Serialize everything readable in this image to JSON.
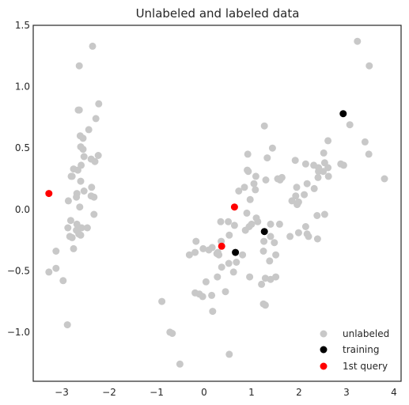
{
  "chart_data": {
    "type": "scatter",
    "title": "Unlabeled and labeled data",
    "xlabel": "",
    "ylabel": "",
    "xlim": [
      -3.6,
      4.15
    ],
    "ylim": [
      -1.4,
      1.5
    ],
    "xticks": [
      -3,
      -2,
      -1,
      0,
      1,
      2,
      3,
      4
    ],
    "yticks": [
      -1.0,
      -0.5,
      0.0,
      0.5,
      1.0,
      1.5
    ],
    "xtick_labels": [
      "−3",
      "−2",
      "−1",
      "0",
      "1",
      "2",
      "3",
      "4"
    ],
    "ytick_labels": [
      "−1.0",
      "−0.5",
      "0.0",
      "0.5",
      "1.0",
      "1.5"
    ],
    "grid": false,
    "legend_position": "bottom-right",
    "colors": {
      "unlabeled": "#c8c8c8",
      "training": "#000000",
      "query": "#ff0000",
      "axis": "#262626"
    },
    "series": [
      {
        "name": "unlabeled",
        "color": "#c8c8c8",
        "points": [
          [
            -2.35,
            1.33
          ],
          [
            -2.63,
            1.17
          ],
          [
            -2.65,
            0.81
          ],
          [
            -2.63,
            0.81
          ],
          [
            -2.22,
            0.86
          ],
          [
            -2.28,
            0.74
          ],
          [
            -2.43,
            0.65
          ],
          [
            -2.61,
            0.6
          ],
          [
            -2.55,
            0.58
          ],
          [
            -2.6,
            0.51
          ],
          [
            -2.55,
            0.49
          ],
          [
            -2.53,
            0.43
          ],
          [
            -2.38,
            0.41
          ],
          [
            -2.3,
            0.39
          ],
          [
            -2.23,
            0.44
          ],
          [
            -2.59,
            0.36
          ],
          [
            -2.75,
            0.33
          ],
          [
            -2.66,
            0.32
          ],
          [
            -2.8,
            0.27
          ],
          [
            -2.78,
            0.27
          ],
          [
            -2.6,
            0.23
          ],
          [
            -2.53,
            0.15
          ],
          [
            -2.37,
            0.18
          ],
          [
            -2.68,
            0.13
          ],
          [
            -2.69,
            0.1
          ],
          [
            -2.32,
            0.1
          ],
          [
            -2.86,
            0.07
          ],
          [
            -2.38,
            0.11
          ],
          [
            -2.62,
            0.02
          ],
          [
            -2.32,
            -0.04
          ],
          [
            -2.81,
            -0.09
          ],
          [
            -2.68,
            -0.12
          ],
          [
            -2.87,
            -0.15
          ],
          [
            -2.58,
            -0.15
          ],
          [
            -2.46,
            -0.15
          ],
          [
            -2.69,
            -0.17
          ],
          [
            -2.64,
            -0.2
          ],
          [
            -2.83,
            -0.22
          ],
          [
            -2.78,
            -0.23
          ],
          [
            -2.6,
            -0.21
          ],
          [
            -2.75,
            -0.32
          ],
          [
            -3.12,
            -0.34
          ],
          [
            -3.12,
            -0.48
          ],
          [
            -3.27,
            -0.51
          ],
          [
            -2.97,
            -0.58
          ],
          [
            -2.88,
            -0.94
          ],
          [
            3.23,
            1.37
          ],
          [
            3.48,
            1.17
          ],
          [
            3.07,
            0.69
          ],
          [
            3.39,
            0.55
          ],
          [
            3.47,
            0.45
          ],
          [
            3.8,
            0.25
          ],
          [
            2.94,
            0.36
          ],
          [
            2.88,
            0.37
          ],
          [
            2.61,
            0.56
          ],
          [
            2.61,
            0.34
          ],
          [
            2.54,
            0.38
          ],
          [
            2.51,
            0.31
          ],
          [
            2.41,
            0.34
          ],
          [
            2.41,
            0.31
          ],
          [
            2.62,
            0.27
          ],
          [
            2.52,
            0.46
          ],
          [
            2.4,
            0.26
          ],
          [
            2.31,
            0.36
          ],
          [
            2.14,
            0.37
          ],
          [
            1.92,
            0.4
          ],
          [
            2.17,
            0.21
          ],
          [
            2.32,
            0.17
          ],
          [
            2.11,
            0.12
          ],
          [
            1.95,
            0.18
          ],
          [
            1.93,
            0.11
          ],
          [
            1.99,
            0.06
          ],
          [
            1.85,
            0.07
          ],
          [
            1.96,
            0.04
          ],
          [
            2.54,
            -0.04
          ],
          [
            2.38,
            -0.05
          ],
          [
            2.14,
            -0.14
          ],
          [
            2.17,
            -0.2
          ],
          [
            1.99,
            -0.19
          ],
          [
            2.39,
            -0.24
          ],
          [
            2.2,
            -0.22
          ],
          [
            1.81,
            -0.22
          ],
          [
            1.55,
            0.25
          ],
          [
            1.6,
            0.24
          ],
          [
            1.64,
            0.26
          ],
          [
            1.44,
            0.5
          ],
          [
            1.33,
            0.42
          ],
          [
            1.27,
            0.68
          ],
          [
            1.3,
            0.24
          ],
          [
            1.09,
            0.27
          ],
          [
            1.05,
            0.21
          ],
          [
            0.93,
            0.31
          ],
          [
            0.91,
            0.32
          ],
          [
            0.92,
            0.45
          ],
          [
            0.85,
            0.18
          ],
          [
            1.08,
            0.16
          ],
          [
            0.73,
            0.15
          ],
          [
            0.97,
            0.08
          ],
          [
            0.9,
            -0.03
          ],
          [
            0.95,
            -0.14
          ],
          [
            1.1,
            -0.07
          ],
          [
            1.13,
            -0.1
          ],
          [
            1.0,
            -0.12
          ],
          [
            1.4,
            -0.12
          ],
          [
            1.59,
            -0.12
          ],
          [
            1.4,
            -0.22
          ],
          [
            1.26,
            -0.26
          ],
          [
            1.48,
            -0.27
          ],
          [
            1.51,
            -0.37
          ],
          [
            1.25,
            -0.34
          ],
          [
            1.38,
            -0.42
          ],
          [
            1.4,
            -0.57
          ],
          [
            1.51,
            -0.55
          ],
          [
            1.29,
            -0.56
          ],
          [
            1.21,
            -0.61
          ],
          [
            0.96,
            -0.55
          ],
          [
            1.25,
            -0.77
          ],
          [
            1.29,
            -0.78
          ],
          [
            0.68,
            -0.43
          ],
          [
            0.62,
            -0.51
          ],
          [
            0.52,
            -0.44
          ],
          [
            0.81,
            -0.37
          ],
          [
            0.36,
            -0.26
          ],
          [
            0.35,
            -0.1
          ],
          [
            0.51,
            -0.1
          ],
          [
            0.64,
            -0.13
          ],
          [
            0.87,
            -0.17
          ],
          [
            0.53,
            -0.21
          ],
          [
            0.27,
            -0.36
          ],
          [
            0.17,
            -0.31
          ],
          [
            0.29,
            -0.35
          ],
          [
            0.31,
            -0.37
          ],
          [
            0.1,
            -0.33
          ],
          [
            -0.02,
            -0.32
          ],
          [
            -0.19,
            -0.35
          ],
          [
            -0.31,
            -0.37
          ],
          [
            -0.17,
            -0.26
          ],
          [
            0.28,
            -0.55
          ],
          [
            0.37,
            -0.47
          ],
          [
            0.04,
            -0.59
          ],
          [
            -0.19,
            -0.68
          ],
          [
            -0.1,
            -0.69
          ],
          [
            -0.03,
            -0.71
          ],
          [
            0.16,
            -0.7
          ],
          [
            0.45,
            -0.67
          ],
          [
            -0.89,
            -0.75
          ],
          [
            0.18,
            -0.83
          ],
          [
            -0.72,
            -1.0
          ],
          [
            -0.67,
            -1.01
          ],
          [
            -0.51,
            -1.26
          ],
          [
            0.53,
            -1.18
          ]
        ]
      },
      {
        "name": "training",
        "color": "#000000",
        "points": [
          [
            2.93,
            0.78
          ],
          [
            1.27,
            -0.18
          ],
          [
            0.66,
            -0.35
          ]
        ]
      },
      {
        "name": "1st query",
        "color": "#ff0000",
        "points": [
          [
            -3.27,
            0.13
          ],
          [
            0.64,
            0.02
          ],
          [
            0.37,
            -0.3
          ]
        ]
      }
    ]
  }
}
